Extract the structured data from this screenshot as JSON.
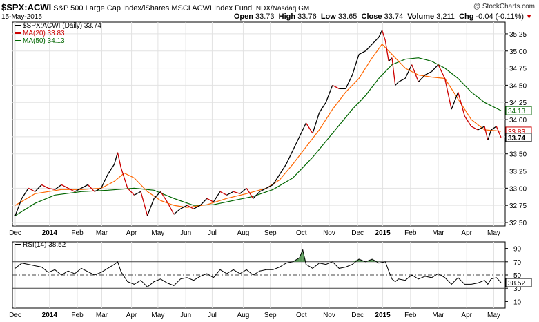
{
  "header": {
    "symbol": "$SPX:ACWI",
    "name": "S&P 500 Large Cap Index/iShares MSCI ACWI Index Fund",
    "exchange": "INDX/Nasdaq GM",
    "watermark": "@ StockCharts.com",
    "date": "15-May-2015",
    "quote": {
      "open_label": "Open",
      "open": "33.73",
      "high_label": "High",
      "high": "33.76",
      "low_label": "Low",
      "low": "33.65",
      "close_label": "Close",
      "close": "33.74",
      "volume_label": "Volume",
      "volume": "3,211",
      "chg_label": "Chg",
      "chg": "-0.04 (-0.11%)"
    }
  },
  "colors": {
    "price": "#000000",
    "down": "#cc0000",
    "ma20": "#ff6600",
    "ma50": "#006600",
    "rsi_fill": "#5a9a5a"
  },
  "chart_data": [
    {
      "type": "line",
      "legend": [
        {
          "label": "$SPX:ACWI (Daily) 33.74",
          "color": "#000000"
        },
        {
          "label": "MA(20) 33.83",
          "color": "#cc0000"
        },
        {
          "label": "MA(50) 34.13",
          "color": "#006600"
        }
      ],
      "ylim": [
        32.5,
        35.35
      ],
      "yticks": [
        "32.50",
        "32.75",
        "33.00",
        "33.25",
        "33.50",
        "33.75",
        "34.00",
        "34.25",
        "34.50",
        "34.75",
        "35.00",
        "35.25"
      ],
      "y_markers": [
        {
          "label": "34.13",
          "value": 34.13,
          "color": "#006600"
        },
        {
          "label": "33.83",
          "value": 33.83,
          "color": "#cc0000"
        },
        {
          "label": "33.74",
          "value": 33.74,
          "color": "#000000",
          "bold": true
        }
      ],
      "x_labels": [
        "Dec",
        "2014",
        "Feb",
        "Mar",
        "Apr",
        "May",
        "Jun",
        "Jul",
        "Aug",
        "Sep",
        "Oct",
        "Nov",
        "Dec",
        "2015",
        "Feb",
        "Mar",
        "Apr",
        "May"
      ],
      "x_label_positions": [
        0,
        0.52,
        0.94,
        1.31,
        1.76,
        2.16,
        2.58,
        2.98,
        3.45,
        3.86,
        4.33,
        4.75,
        5.18,
        5.56,
        5.98,
        6.4,
        6.83,
        7.24
      ],
      "price": [
        [
          0,
          32.6
        ],
        [
          0.1,
          32.85
        ],
        [
          0.2,
          33.0
        ],
        [
          0.3,
          32.95
        ],
        [
          0.4,
          33.05
        ],
        [
          0.5,
          33.0
        ],
        [
          0.6,
          32.98
        ],
        [
          0.7,
          33.05
        ],
        [
          0.8,
          33.0
        ],
        [
          0.9,
          32.95
        ],
        [
          1.0,
          33.0
        ],
        [
          1.1,
          33.05
        ],
        [
          1.2,
          32.95
        ],
        [
          1.3,
          33.0
        ],
        [
          1.4,
          33.2
        ],
        [
          1.5,
          33.35
        ],
        [
          1.55,
          33.52
        ],
        [
          1.6,
          33.3
        ],
        [
          1.7,
          33.0
        ],
        [
          1.8,
          32.9
        ],
        [
          1.9,
          32.95
        ],
        [
          2.0,
          32.6
        ],
        [
          2.1,
          32.85
        ],
        [
          2.2,
          32.95
        ],
        [
          2.3,
          32.8
        ],
        [
          2.4,
          32.62
        ],
        [
          2.5,
          32.7
        ],
        [
          2.6,
          32.75
        ],
        [
          2.7,
          32.7
        ],
        [
          2.8,
          32.75
        ],
        [
          2.9,
          32.85
        ],
        [
          3.0,
          32.8
        ],
        [
          3.1,
          32.95
        ],
        [
          3.2,
          32.9
        ],
        [
          3.3,
          32.95
        ],
        [
          3.4,
          32.92
        ],
        [
          3.5,
          33.0
        ],
        [
          3.6,
          32.85
        ],
        [
          3.7,
          32.95
        ],
        [
          3.8,
          33.0
        ],
        [
          3.9,
          33.05
        ],
        [
          4.0,
          33.2
        ],
        [
          4.1,
          33.35
        ],
        [
          4.2,
          33.55
        ],
        [
          4.3,
          33.75
        ],
        [
          4.4,
          33.95
        ],
        [
          4.5,
          33.8
        ],
        [
          4.6,
          34.1
        ],
        [
          4.7,
          34.25
        ],
        [
          4.8,
          34.5
        ],
        [
          4.9,
          34.45
        ],
        [
          5.0,
          34.45
        ],
        [
          5.1,
          34.65
        ],
        [
          5.2,
          34.95
        ],
        [
          5.3,
          35.0
        ],
        [
          5.4,
          35.1
        ],
        [
          5.5,
          35.2
        ],
        [
          5.55,
          35.3
        ],
        [
          5.6,
          35.15
        ],
        [
          5.65,
          34.85
        ],
        [
          5.7,
          34.9
        ],
        [
          5.75,
          34.5
        ],
        [
          5.8,
          34.55
        ],
        [
          5.9,
          34.6
        ],
        [
          6.0,
          34.8
        ],
        [
          6.1,
          34.55
        ],
        [
          6.2,
          34.65
        ],
        [
          6.3,
          34.7
        ],
        [
          6.4,
          34.8
        ],
        [
          6.5,
          34.6
        ],
        [
          6.6,
          34.15
        ],
        [
          6.7,
          34.4
        ],
        [
          6.8,
          34.05
        ],
        [
          6.9,
          33.9
        ],
        [
          7.0,
          33.85
        ],
        [
          7.1,
          33.9
        ],
        [
          7.15,
          33.7
        ],
        [
          7.2,
          33.85
        ],
        [
          7.28,
          33.9
        ],
        [
          7.35,
          33.74
        ]
      ],
      "ma20": [
        [
          0,
          32.75
        ],
        [
          0.3,
          32.92
        ],
        [
          0.7,
          32.98
        ],
        [
          1.0,
          32.98
        ],
        [
          1.3,
          33.0
        ],
        [
          1.5,
          33.1
        ],
        [
          1.65,
          33.22
        ],
        [
          1.8,
          33.15
        ],
        [
          2.0,
          32.95
        ],
        [
          2.2,
          32.82
        ],
        [
          2.4,
          32.75
        ],
        [
          2.6,
          32.72
        ],
        [
          2.9,
          32.76
        ],
        [
          3.2,
          32.85
        ],
        [
          3.5,
          32.92
        ],
        [
          3.8,
          33.0
        ],
        [
          4.0,
          33.12
        ],
        [
          4.2,
          33.35
        ],
        [
          4.4,
          33.6
        ],
        [
          4.6,
          33.85
        ],
        [
          4.8,
          34.15
        ],
        [
          5.0,
          34.4
        ],
        [
          5.2,
          34.6
        ],
        [
          5.4,
          34.9
        ],
        [
          5.55,
          35.1
        ],
        [
          5.7,
          34.95
        ],
        [
          5.9,
          34.75
        ],
        [
          6.1,
          34.65
        ],
        [
          6.3,
          34.62
        ],
        [
          6.5,
          34.6
        ],
        [
          6.7,
          34.3
        ],
        [
          6.9,
          34.0
        ],
        [
          7.1,
          33.85
        ],
        [
          7.35,
          33.83
        ]
      ],
      "ma50": [
        [
          0,
          32.6
        ],
        [
          0.3,
          32.78
        ],
        [
          0.6,
          32.9
        ],
        [
          1.0,
          32.95
        ],
        [
          1.4,
          32.97
        ],
        [
          1.8,
          33.0
        ],
        [
          2.1,
          32.97
        ],
        [
          2.4,
          32.85
        ],
        [
          2.7,
          32.75
        ],
        [
          3.0,
          32.76
        ],
        [
          3.3,
          32.82
        ],
        [
          3.6,
          32.88
        ],
        [
          3.9,
          32.98
        ],
        [
          4.2,
          33.15
        ],
        [
          4.5,
          33.45
        ],
        [
          4.8,
          33.8
        ],
        [
          5.1,
          34.15
        ],
        [
          5.3,
          34.35
        ],
        [
          5.5,
          34.6
        ],
        [
          5.7,
          34.8
        ],
        [
          5.9,
          34.88
        ],
        [
          6.1,
          34.9
        ],
        [
          6.3,
          34.85
        ],
        [
          6.5,
          34.75
        ],
        [
          6.7,
          34.6
        ],
        [
          6.9,
          34.4
        ],
        [
          7.1,
          34.25
        ],
        [
          7.35,
          34.13
        ]
      ]
    },
    {
      "type": "line",
      "legend": [
        {
          "label": "RSI(14) 38.52",
          "color": "#000000"
        }
      ],
      "ylim": [
        0,
        100
      ],
      "yticks": [
        "10",
        "30",
        "50",
        "70",
        "90"
      ],
      "y_markers": [
        {
          "label": "38.52",
          "value": 38.52,
          "color": "#000000"
        }
      ],
      "reference_lines": [
        70,
        50,
        30
      ],
      "x_labels": [
        "Dec",
        "2014",
        "Feb",
        "Mar",
        "Apr",
        "May",
        "Jun",
        "Jul",
        "Aug",
        "Sep",
        "Oct",
        "Nov",
        "Dec",
        "2015",
        "Feb",
        "Mar",
        "Apr",
        "May"
      ],
      "rsi": [
        [
          0,
          60
        ],
        [
          0.1,
          68
        ],
        [
          0.2,
          66
        ],
        [
          0.3,
          64
        ],
        [
          0.4,
          62
        ],
        [
          0.5,
          54
        ],
        [
          0.6,
          58
        ],
        [
          0.7,
          50
        ],
        [
          0.8,
          56
        ],
        [
          0.9,
          52
        ],
        [
          1.0,
          60
        ],
        [
          1.1,
          55
        ],
        [
          1.2,
          50
        ],
        [
          1.3,
          54
        ],
        [
          1.4,
          60
        ],
        [
          1.5,
          66
        ],
        [
          1.55,
          70
        ],
        [
          1.6,
          55
        ],
        [
          1.7,
          40
        ],
        [
          1.8,
          36
        ],
        [
          1.9,
          42
        ],
        [
          2.0,
          32
        ],
        [
          2.1,
          40
        ],
        [
          2.2,
          44
        ],
        [
          2.3,
          38
        ],
        [
          2.4,
          34
        ],
        [
          2.5,
          44
        ],
        [
          2.6,
          46
        ],
        [
          2.7,
          42
        ],
        [
          2.8,
          48
        ],
        [
          2.9,
          52
        ],
        [
          3.0,
          46
        ],
        [
          3.1,
          58
        ],
        [
          3.2,
          52
        ],
        [
          3.3,
          58
        ],
        [
          3.4,
          52
        ],
        [
          3.5,
          58
        ],
        [
          3.6,
          50
        ],
        [
          3.7,
          56
        ],
        [
          3.8,
          58
        ],
        [
          3.9,
          58
        ],
        [
          4.0,
          62
        ],
        [
          4.1,
          68
        ],
        [
          4.2,
          70
        ],
        [
          4.3,
          76
        ],
        [
          4.35,
          88
        ],
        [
          4.4,
          66
        ],
        [
          4.5,
          60
        ],
        [
          4.6,
          68
        ],
        [
          4.7,
          66
        ],
        [
          4.8,
          70
        ],
        [
          4.9,
          60
        ],
        [
          5.0,
          62
        ],
        [
          5.1,
          66
        ],
        [
          5.2,
          74
        ],
        [
          5.3,
          70
        ],
        [
          5.4,
          74
        ],
        [
          5.5,
          68
        ],
        [
          5.6,
          70
        ],
        [
          5.65,
          56
        ],
        [
          5.7,
          44
        ],
        [
          5.75,
          40
        ],
        [
          5.8,
          44
        ],
        [
          5.9,
          42
        ],
        [
          6.0,
          50
        ],
        [
          6.1,
          44
        ],
        [
          6.2,
          48
        ],
        [
          6.3,
          46
        ],
        [
          6.4,
          52
        ],
        [
          6.5,
          46
        ],
        [
          6.6,
          36
        ],
        [
          6.7,
          46
        ],
        [
          6.8,
          36
        ],
        [
          6.9,
          36
        ],
        [
          7.0,
          38
        ],
        [
          7.1,
          42
        ],
        [
          7.15,
          36
        ],
        [
          7.2,
          44
        ],
        [
          7.28,
          46
        ],
        [
          7.35,
          38.52
        ]
      ]
    }
  ]
}
